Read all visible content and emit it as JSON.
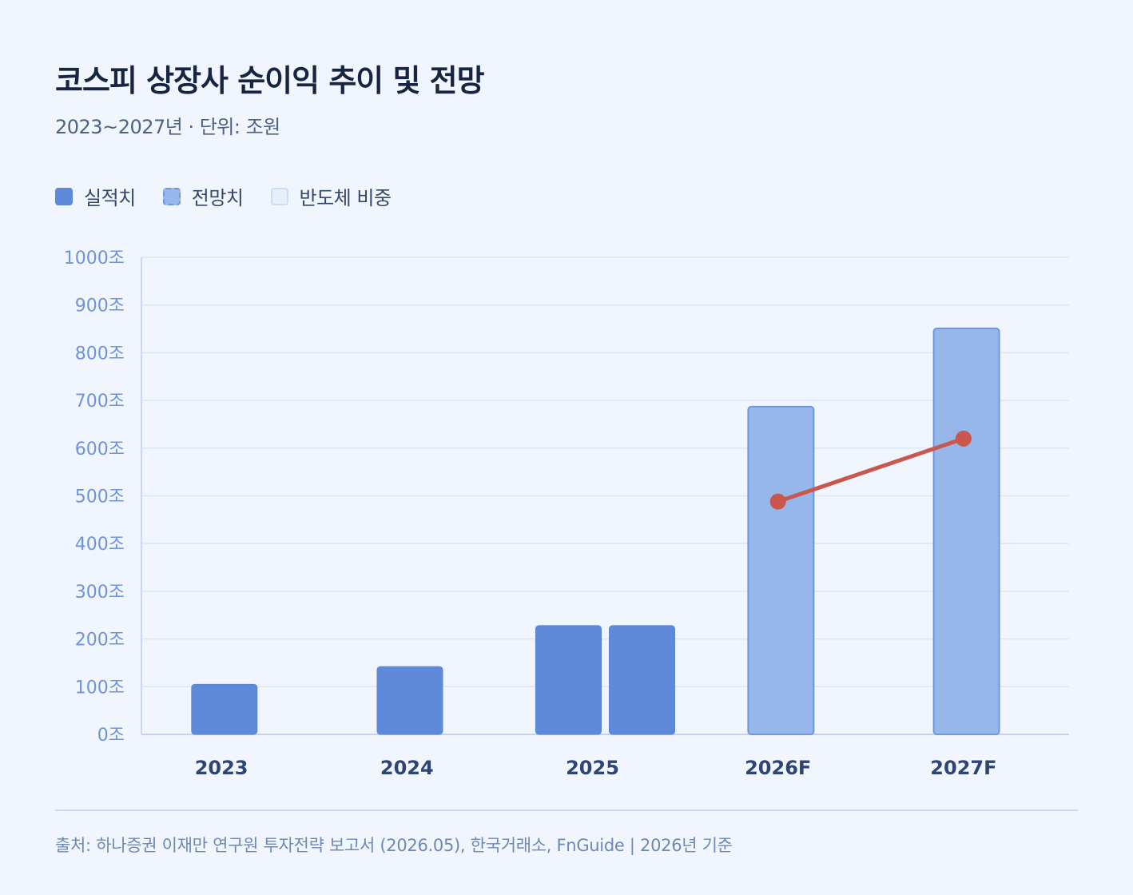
{
  "title": "코스피 상장사 순이익 추이 및 전망",
  "subtitle": "2023~2027년 · 단위: 조원",
  "legend": [
    {
      "label": "실적치",
      "style": "actual"
    },
    {
      "label": "전망치",
      "style": "forecast"
    },
    {
      "label": "반도체 비중",
      "style": "semiconductor"
    }
  ],
  "colors": {
    "actual": "#5f8ad9",
    "forecast": "#97b6e9",
    "forecast_border": "#6f97de",
    "semiconductor": "#e6eef9",
    "line": "#c9574d",
    "grid": "#dbe6f6",
    "axis_tick_text": "#6f93dc",
    "category_text": "#2d4475"
  },
  "chart_data": {
    "type": "bar",
    "y_tick_suffix": "조",
    "ylim": [
      0,
      1000
    ],
    "yticks": [
      0,
      100,
      200,
      300,
      400,
      500,
      600,
      700,
      800,
      900,
      1000
    ],
    "grid": true,
    "legend_position": "top-left",
    "categories": [
      "2023",
      "2024",
      "2025",
      "2026F",
      "2027F"
    ],
    "bars": [
      {
        "category": "2023",
        "values": [
          {
            "value": 105,
            "kind": "actual"
          }
        ]
      },
      {
        "category": "2024",
        "values": [
          {
            "value": 142,
            "kind": "actual"
          }
        ]
      },
      {
        "category": "2025",
        "values": [
          {
            "value": 228,
            "kind": "actual"
          },
          {
            "value": 228,
            "kind": "actual"
          }
        ]
      },
      {
        "category": "2026F",
        "values": [
          {
            "value": 687,
            "kind": "forecast"
          }
        ]
      },
      {
        "category": "2027F",
        "values": [
          {
            "value": 851,
            "kind": "forecast"
          }
        ]
      }
    ],
    "line": {
      "points": [
        {
          "category": "2026F",
          "value": 488
        },
        {
          "category": "2027F",
          "value": 620
        }
      ]
    }
  },
  "footer": "출처: 하나증권 이재만 연구원 투자전략 보고서 (2026.05), 한국거래소, FnGuide | 2026년 기준"
}
